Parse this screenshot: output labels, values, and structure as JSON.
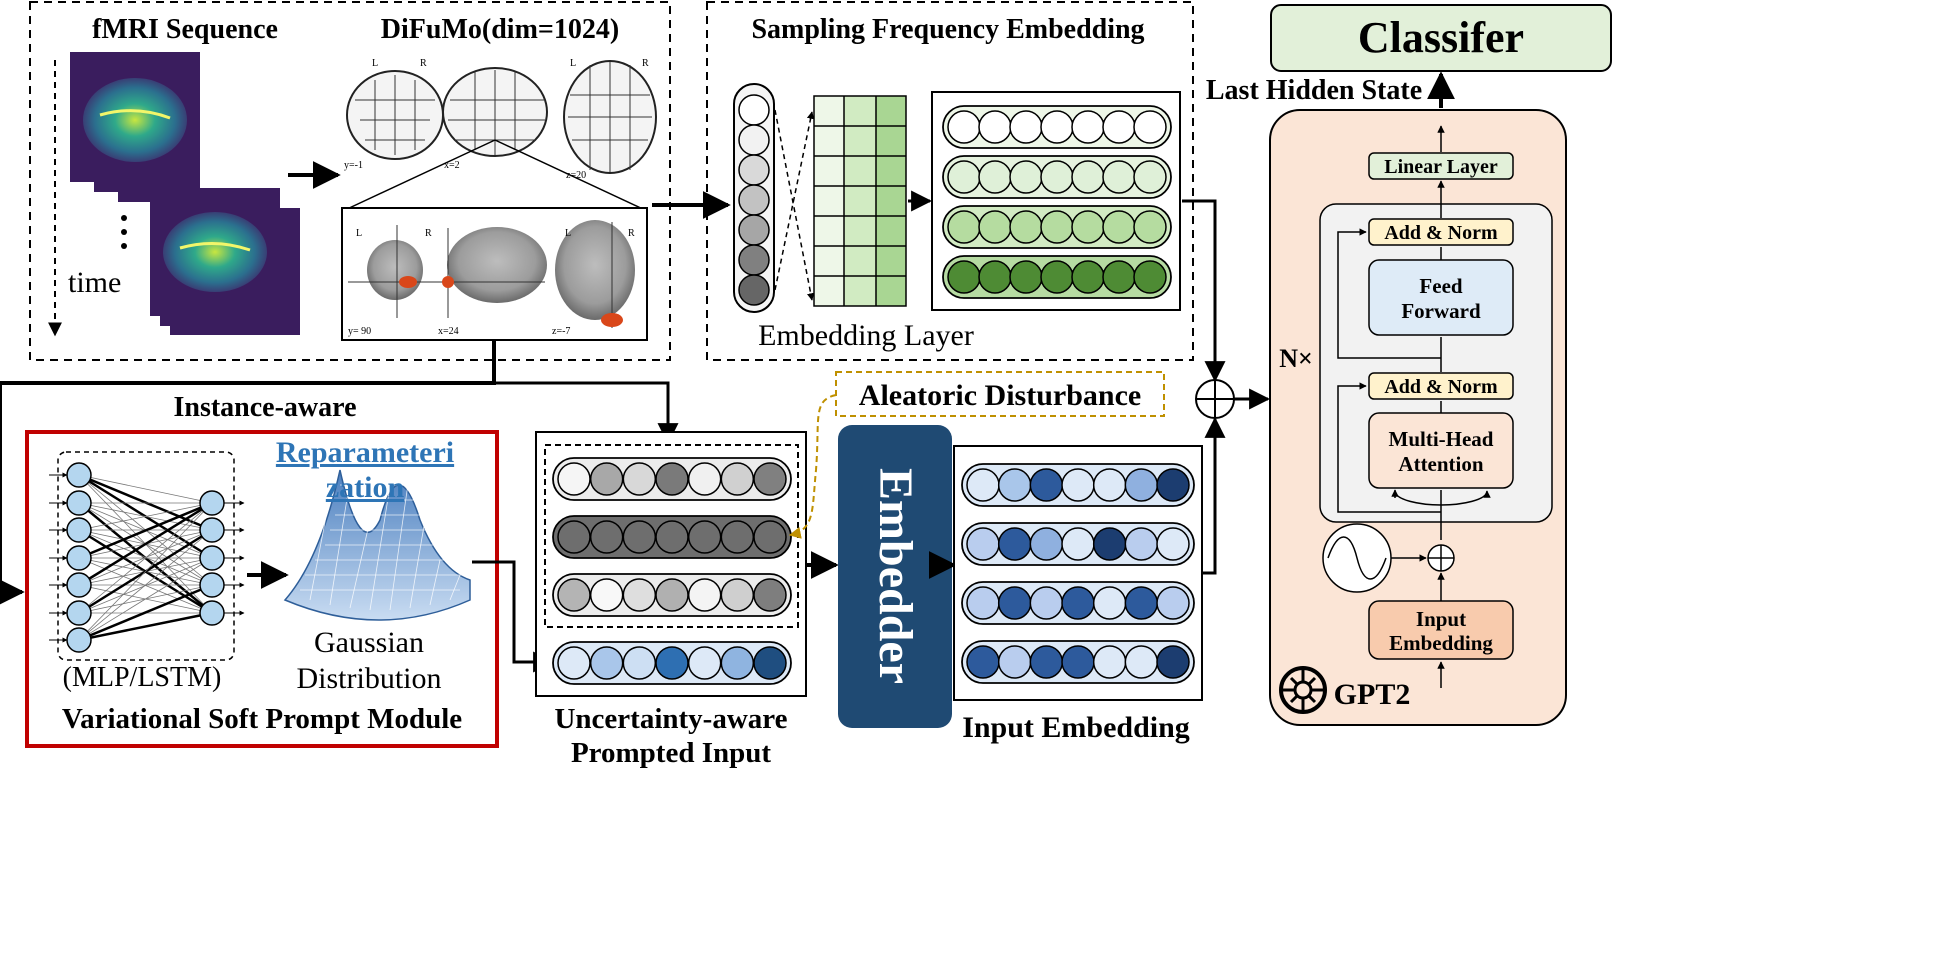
{
  "fmri_panel": {
    "title": "fMRI Sequence",
    "time_label": "time",
    "dots": "·\n·\n·"
  },
  "difumo_panel": {
    "title": "DiFuMo(dim=1024)",
    "atlas_coords": [
      "y=-1",
      "x=2",
      "z=20"
    ],
    "zoom_coords": [
      "y= 90",
      "x=24",
      "z=-7"
    ],
    "orientation": [
      "L",
      "R"
    ]
  },
  "sampling_panel": {
    "title": "Sampling Frequency Embedding",
    "subtitle": "Embedding Layer"
  },
  "vsp_module": {
    "title": "Variational Soft Prompt Module",
    "network_label": "(MLP/LSTM)",
    "reparam_line1": "Reparameteri",
    "reparam_line2": "zation",
    "gaussian_line1": "Gaussian",
    "gaussian_line2": "Distribution"
  },
  "instance_label": "Instance-aware",
  "aleatoric_label": "Aleatoric Disturbance",
  "prompted_input": {
    "line1": "Uncertainty-aware",
    "line2": "Prompted Input"
  },
  "embedder_label": "Embedder",
  "input_embedding_label": "Input Embedding",
  "gpt2": {
    "classifier_label": "Classifer",
    "last_hidden_label": "Last Hidden State",
    "linear_layer": "Linear Layer",
    "add_norm_top": "Add & Norm",
    "feed_forward_line1": "Feed",
    "feed_forward_line2": "Forward",
    "add_norm_bottom": "Add & Norm",
    "mha_line1": "Multi-Head",
    "mha_line2": "Attention",
    "input_embedding_line1": "Input",
    "input_embedding_line2": "Embedding",
    "n_label": "N×",
    "logo_label": "GPT2"
  },
  "colors": {
    "green_row_fills": [
      "#ffffff",
      "#dff0d8",
      "#b5dca0",
      "#4e8b34"
    ],
    "gray_rows": [
      [
        "#f5f5f5",
        "#a8a8a8",
        "#d8d8d8",
        "#7a7a7a",
        "#f0f0f0",
        "#d0d0d0",
        "#808080"
      ],
      [
        "#6e6e6e",
        "#6e6e6e",
        "#6e6e6e",
        "#6e6e6e",
        "#6e6e6e",
        "#6e6e6e",
        "#6e6e6e"
      ],
      [
        "#b4b4b4",
        "#f8f8f8",
        "#dedede",
        "#b0b0b0",
        "#f4f4f4",
        "#cfcfcf",
        "#7e7e7e"
      ]
    ],
    "prompt_row": [
      "#dde9f7",
      "#a9c6ea",
      "#cddff3",
      "#2e6fb2",
      "#dde9f7",
      "#8fb4e0",
      "#1f4e80"
    ],
    "input_rows": [
      [
        "#dde9f7",
        "#a9c6ea",
        "#2d5a9c",
        "#dde9f7",
        "#dde9f7",
        "#8fb0df",
        "#1c3d70"
      ],
      [
        "#b9cdee",
        "#2d5a9c",
        "#8fb0df",
        "#dde9f7",
        "#1c3d70",
        "#b9cdee",
        "#dde9f7"
      ],
      [
        "#b9cdee",
        "#2d5a9c",
        "#b9cdee",
        "#2d5a9c",
        "#dde9f7",
        "#2d5a9c",
        "#b9cdee"
      ],
      [
        "#2d5a9c",
        "#b9cdee",
        "#2d5a9c",
        "#2d5a9c",
        "#dde9f7",
        "#dde9f7",
        "#1c3d70"
      ]
    ],
    "embedder_fill": "#1f4a73",
    "gpt2_bg": "#fbe5d6",
    "classifier_bg": "#e2f0d9",
    "vsp_border": "#c00000",
    "aleatoric_border": "#bf9000",
    "reparam_color": "#2e75b6"
  }
}
